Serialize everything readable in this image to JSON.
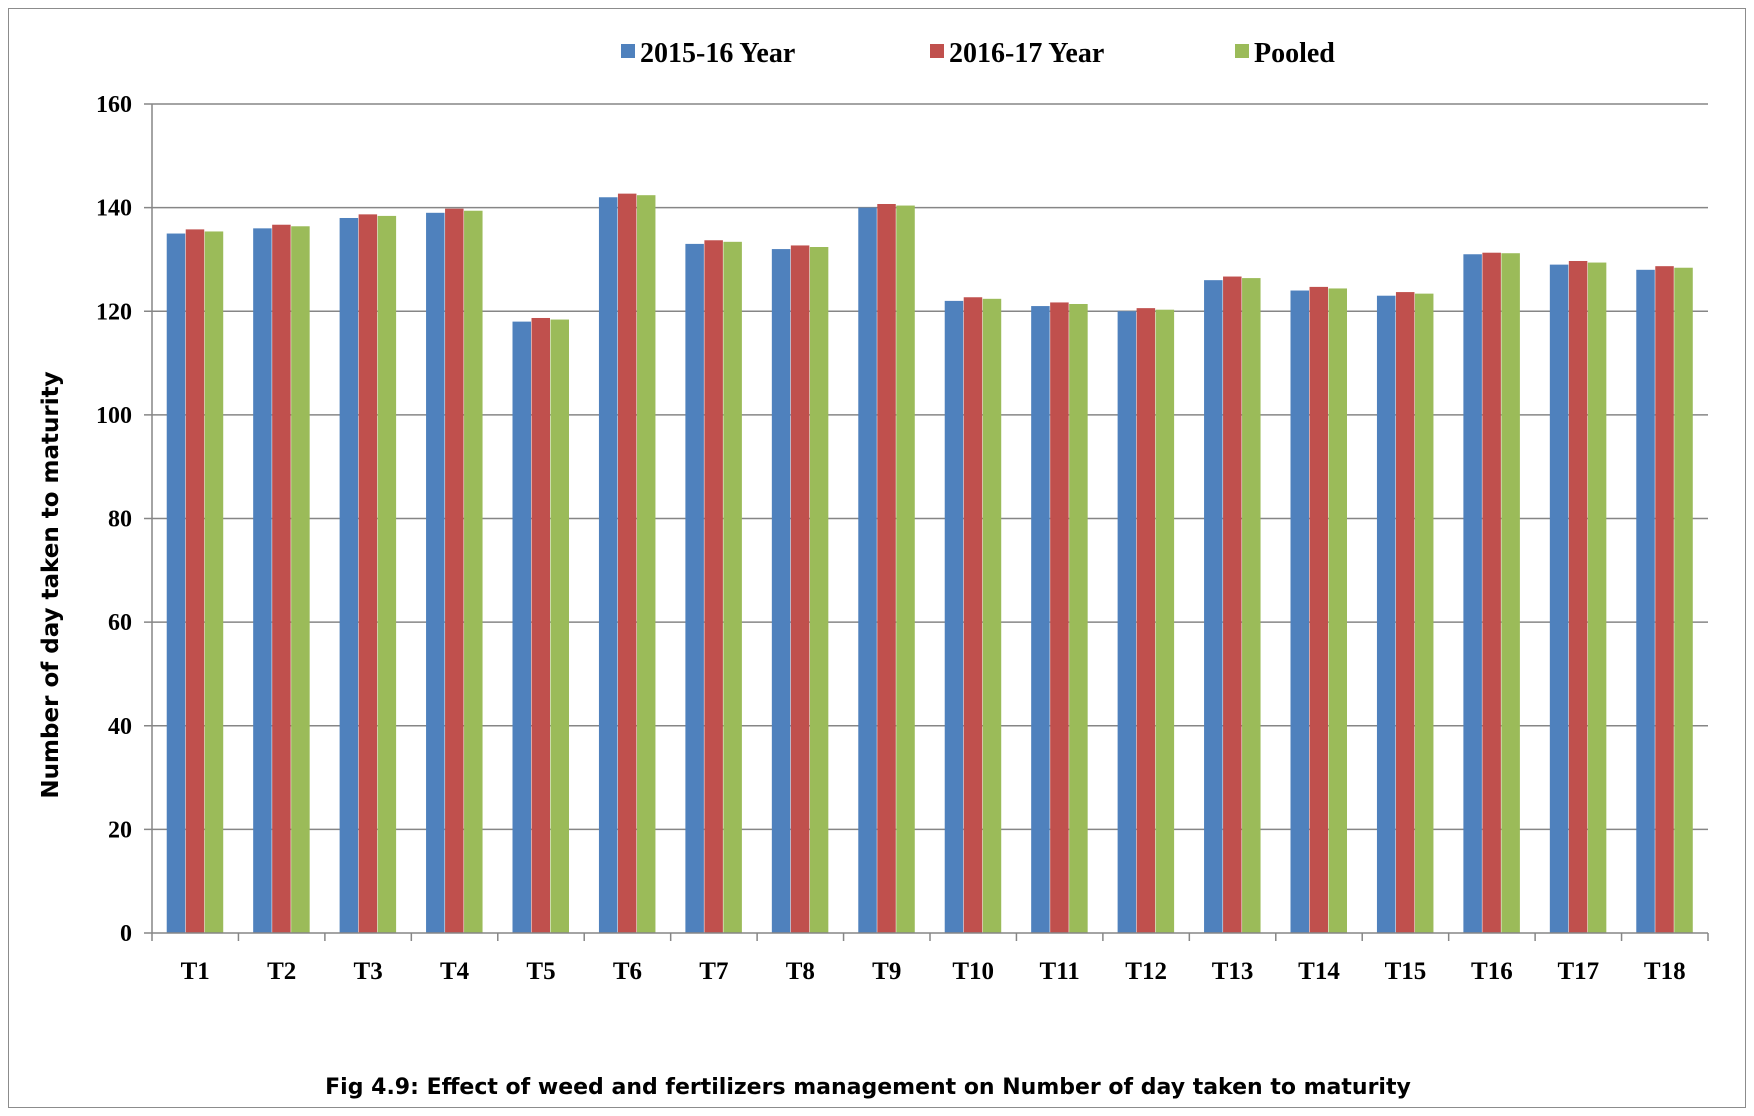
{
  "chart_data": {
    "type": "bar",
    "caption": "Fig 4.9: Effect of weed and fertilizers management on Number of day taken to maturity",
    "ylabel": "Number of day taken to maturity",
    "xlabel": "",
    "ylim": [
      0,
      160
    ],
    "yticks": [
      "0",
      "20",
      "40",
      "60",
      "80",
      "100",
      "120",
      "140",
      "160"
    ],
    "grid": true,
    "legend_position": "top",
    "categories": [
      "T1",
      "T2",
      "T3",
      "T4",
      "T5",
      "T6",
      "T7",
      "T8",
      "T9",
      "T10",
      "T11",
      "T12",
      "T13",
      "T14",
      "T15",
      "T16",
      "T17",
      "T18"
    ],
    "series": [
      {
        "name": "2015-16 Year",
        "color": "#4F81BD",
        "values": [
          135,
          136,
          138,
          139,
          118,
          142,
          133,
          132,
          140,
          122,
          121,
          120,
          126,
          124,
          123,
          131,
          129,
          128
        ]
      },
      {
        "name": "2016-17 Year",
        "color": "#C0504D",
        "values": [
          135.8,
          136.7,
          138.7,
          139.8,
          118.7,
          142.7,
          133.7,
          132.7,
          140.7,
          122.7,
          121.7,
          120.6,
          126.7,
          124.7,
          123.7,
          131.3,
          129.7,
          128.7
        ]
      },
      {
        "name": "Pooled",
        "color": "#9BBB59",
        "values": [
          135.4,
          136.4,
          138.4,
          139.4,
          118.4,
          142.4,
          133.4,
          132.4,
          140.4,
          122.4,
          121.4,
          120.3,
          126.4,
          124.4,
          123.4,
          131.2,
          129.4,
          128.4
        ]
      }
    ]
  }
}
